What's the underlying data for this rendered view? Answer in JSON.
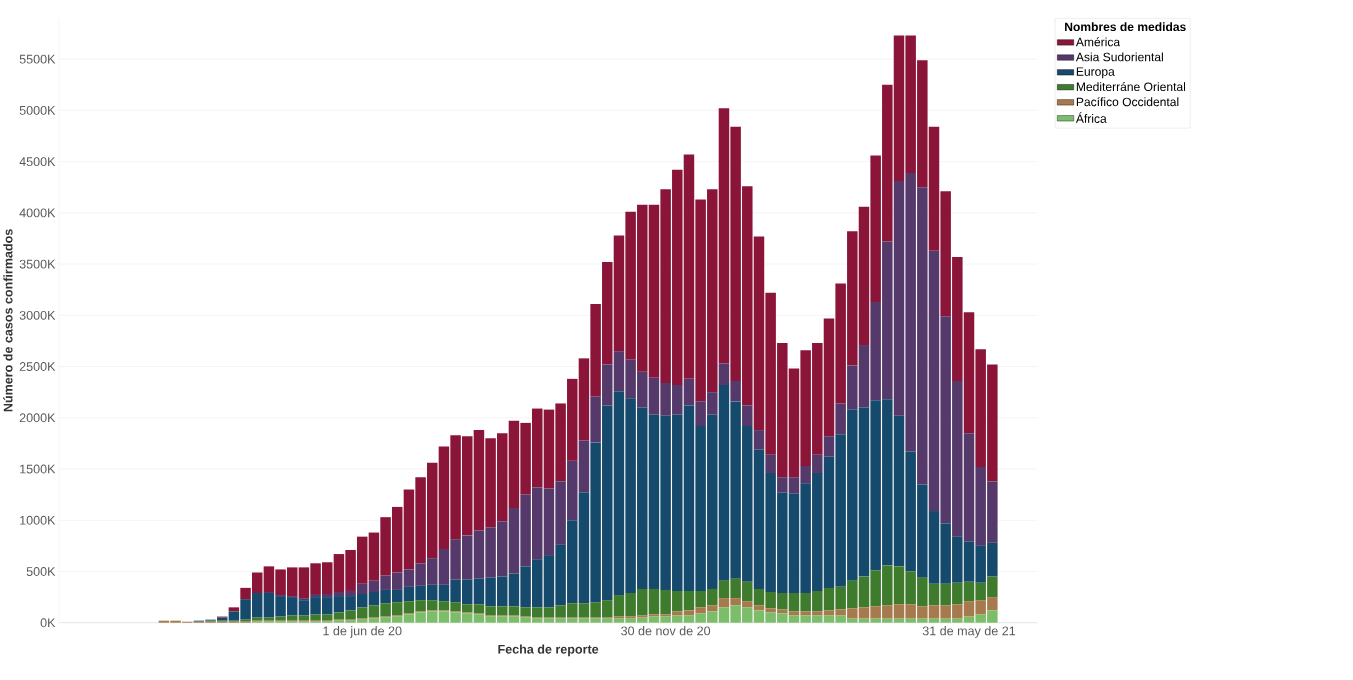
{
  "chart_data": {
    "type": "bar",
    "stacked": true,
    "xlabel": "Fecha de reporte",
    "ylabel": "Número de casos confirmados",
    "legend_title": "Nombres de medidas",
    "x": [
      "2020-02-03",
      "2020-02-10",
      "2020-02-17",
      "2020-02-24",
      "2020-03-02",
      "2020-03-09",
      "2020-03-16",
      "2020-03-23",
      "2020-03-30",
      "2020-04-06",
      "2020-04-13",
      "2020-04-20",
      "2020-04-27",
      "2020-05-04",
      "2020-05-11",
      "2020-05-18",
      "2020-05-25",
      "2020-06-01",
      "2020-06-08",
      "2020-06-15",
      "2020-06-22",
      "2020-06-29",
      "2020-07-06",
      "2020-07-13",
      "2020-07-20",
      "2020-07-27",
      "2020-08-03",
      "2020-08-10",
      "2020-08-17",
      "2020-08-24",
      "2020-08-31",
      "2020-09-07",
      "2020-09-14",
      "2020-09-21",
      "2020-09-28",
      "2020-10-05",
      "2020-10-12",
      "2020-10-19",
      "2020-10-26",
      "2020-11-02",
      "2020-11-09",
      "2020-11-16",
      "2020-11-23",
      "2020-11-30",
      "2020-12-07",
      "2020-12-14",
      "2020-12-21",
      "2020-12-28",
      "2021-01-04",
      "2021-01-11",
      "2021-01-18",
      "2021-01-25",
      "2021-02-01",
      "2021-02-08",
      "2021-02-15",
      "2021-02-22",
      "2021-03-01",
      "2021-03-08",
      "2021-03-15",
      "2021-03-22",
      "2021-03-29",
      "2021-04-05",
      "2021-04-12",
      "2021-04-19",
      "2021-04-26",
      "2021-05-03",
      "2021-05-10",
      "2021-05-17",
      "2021-05-24",
      "2021-05-31",
      "2021-06-07",
      "2021-06-14"
    ],
    "series": [
      {
        "name": "África",
        "color": "#7cbd6a",
        "values": [
          null,
          null,
          null,
          null,
          null,
          null,
          null,
          null,
          10,
          10,
          10,
          10,
          10,
          10,
          10,
          20,
          20,
          30,
          40,
          50,
          60,
          80,
          100,
          110,
          110,
          100,
          90,
          80,
          60,
          60,
          60,
          50,
          40,
          40,
          40,
          40,
          40,
          40,
          40,
          40,
          40,
          50,
          60,
          60,
          70,
          70,
          90,
          110,
          150,
          170,
          150,
          120,
          100,
          90,
          70,
          70,
          70,
          70,
          70,
          40,
          40,
          40,
          40,
          40,
          40,
          40,
          40,
          40,
          40,
          60,
          80,
          120
        ]
      },
      {
        "name": "Pacífico Occidental",
        "color": "#a67a4c",
        "values": [
          20,
          20,
          10,
          10,
          10,
          10,
          10,
          10,
          10,
          10,
          10,
          10,
          10,
          10,
          10,
          10,
          10,
          10,
          10,
          10,
          10,
          10,
          10,
          10,
          10,
          10,
          10,
          10,
          10,
          10,
          10,
          10,
          10,
          10,
          10,
          10,
          10,
          10,
          10,
          20,
          20,
          20,
          20,
          20,
          40,
          50,
          60,
          60,
          90,
          70,
          60,
          50,
          40,
          40,
          40,
          40,
          40,
          50,
          60,
          100,
          110,
          120,
          130,
          140,
          140,
          120,
          130,
          130,
          140,
          150,
          140,
          130
        ]
      },
      {
        "name": "Mediterráne Oriental",
        "color": "#3e7b2c",
        "values": [
          null,
          null,
          null,
          null,
          10,
          10,
          10,
          20,
          30,
          30,
          40,
          50,
          50,
          60,
          60,
          70,
          90,
          110,
          120,
          130,
          130,
          120,
          110,
          100,
          90,
          90,
          80,
          90,
          90,
          90,
          90,
          90,
          100,
          100,
          120,
          140,
          140,
          150,
          170,
          210,
          230,
          260,
          250,
          240,
          200,
          190,
          160,
          160,
          170,
          190,
          190,
          160,
          160,
          160,
          180,
          180,
          200,
          220,
          220,
          270,
          300,
          350,
          390,
          370,
          320,
          280,
          210,
          210,
          210,
          190,
          170,
          200
        ]
      },
      {
        "name": "Europa",
        "color": "#164a6d",
        "values": [
          null,
          null,
          null,
          10,
          10,
          30,
          90,
          200,
          240,
          240,
          200,
          180,
          150,
          170,
          170,
          160,
          140,
          130,
          130,
          130,
          120,
          140,
          140,
          150,
          160,
          220,
          240,
          250,
          280,
          290,
          320,
          400,
          470,
          510,
          590,
          810,
          1080,
          1560,
          1900,
          1990,
          1900,
          1770,
          1700,
          1700,
          1720,
          1810,
          1610,
          1700,
          1910,
          1730,
          1520,
          1360,
          1160,
          980,
          970,
          1070,
          1150,
          1280,
          1490,
          1670,
          1650,
          1660,
          1620,
          1470,
          1170,
          910,
          710,
          590,
          450,
          390,
          360,
          330
        ]
      },
      {
        "name": "Asia Sudoriental",
        "color": "#56396b",
        "values": [
          null,
          null,
          null,
          null,
          null,
          null,
          null,
          null,
          null,
          10,
          10,
          10,
          20,
          30,
          30,
          40,
          50,
          100,
          110,
          140,
          170,
          170,
          220,
          260,
          350,
          390,
          430,
          470,
          490,
          540,
          640,
          700,
          700,
          650,
          620,
          580,
          510,
          450,
          400,
          390,
          380,
          350,
          360,
          320,
          290,
          260,
          240,
          220,
          210,
          200,
          200,
          190,
          180,
          150,
          160,
          170,
          180,
          200,
          300,
          430,
          610,
          960,
          1540,
          2290,
          2720,
          2900,
          2540,
          2020,
          1520,
          1060,
          770,
          600
        ]
      },
      {
        "name": "América",
        "color": "#8b1538",
        "values": [
          null,
          null,
          null,
          null,
          null,
          10,
          40,
          110,
          200,
          250,
          250,
          280,
          300,
          300,
          310,
          370,
          400,
          460,
          470,
          570,
          640,
          780,
          840,
          930,
          1000,
          1020,
          970,
          980,
          870,
          860,
          850,
          700,
          770,
          770,
          760,
          800,
          800,
          900,
          1000,
          1130,
          1440,
          1630,
          1690,
          1890,
          2100,
          2190,
          1970,
          1980,
          2490,
          2480,
          2140,
          1890,
          1580,
          1310,
          1060,
          1130,
          1090,
          1150,
          1170,
          1310,
          1350,
          1430,
          1530,
          1420,
          1340,
          1240,
          1210,
          1220,
          1210,
          1180,
          1150,
          1140
        ]
      }
    ],
    "xlim": [
      "2019-12-02",
      "2021-07-11"
    ],
    "xticks": [
      {
        "value": "2020-06-01",
        "label": "1 de jun de 20"
      },
      {
        "value": "2020-11-30",
        "label": "30 de nov de 20"
      },
      {
        "value": "2021-05-31",
        "label": "31 de may de 21"
      }
    ],
    "ylim": [
      0,
      5900
    ],
    "yticks": [
      {
        "value": 0,
        "label": "0K"
      },
      {
        "value": 500,
        "label": "500K"
      },
      {
        "value": 1000,
        "label": "1000K"
      },
      {
        "value": 1500,
        "label": "1500K"
      },
      {
        "value": 2000,
        "label": "2000K"
      },
      {
        "value": 2500,
        "label": "2500K"
      },
      {
        "value": 3000,
        "label": "3000K"
      },
      {
        "value": 3500,
        "label": "3500K"
      },
      {
        "value": 4000,
        "label": "4000K"
      },
      {
        "value": 4500,
        "label": "4500K"
      },
      {
        "value": 5000,
        "label": "5000K"
      },
      {
        "value": 5500,
        "label": "5500K"
      }
    ],
    "grid": "y",
    "legend": "top right"
  }
}
